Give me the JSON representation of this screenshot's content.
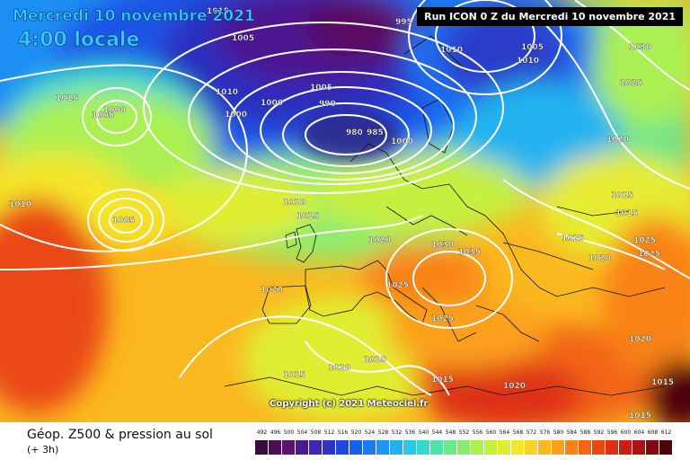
{
  "header": {
    "date_title": "Mercredi 10 novembre 2021",
    "time_title": "4:00 locale",
    "run_banner": "Run ICON 0 Z du Mercredi 10 novembre 2021"
  },
  "map": {
    "copyright": "Copyright (c) 2021 Meteociel.fr",
    "isobar_labels": [
      "1015",
      "1010",
      "1005",
      "1000",
      "995",
      "990",
      "985",
      "980",
      "1020",
      "1025",
      "1030",
      "1035"
    ]
  },
  "legend": {
    "title": "Géop. Z500 & pression au sol",
    "subtitle": "(+ 3h)",
    "scale_values": [
      "492",
      "496",
      "500",
      "504",
      "508",
      "512",
      "516",
      "520",
      "524",
      "528",
      "532",
      "536",
      "540",
      "544",
      "548",
      "552",
      "556",
      "560",
      "564",
      "568",
      "572",
      "576",
      "580",
      "584",
      "588",
      "592",
      "596",
      "600",
      "604",
      "608",
      "612"
    ],
    "scale_colors": [
      "#3a0a3e",
      "#4b0e55",
      "#5b126c",
      "#4b1b8e",
      "#3f25b0",
      "#2b35c9",
      "#1f49dd",
      "#1a60ee",
      "#1b7af3",
      "#1c95f4",
      "#20b2f0",
      "#29c8e6",
      "#3ad8cc",
      "#4fe2aa",
      "#6ae88c",
      "#8aec6e",
      "#aaf052",
      "#c6f03f",
      "#e0ee32",
      "#f4e62a",
      "#fbd124",
      "#fcb91f",
      "#fca01b",
      "#f98317",
      "#f26515",
      "#ea4813",
      "#dd3012",
      "#c81f12",
      "#a51312",
      "#7f0b10",
      "#4e050a"
    ]
  }
}
